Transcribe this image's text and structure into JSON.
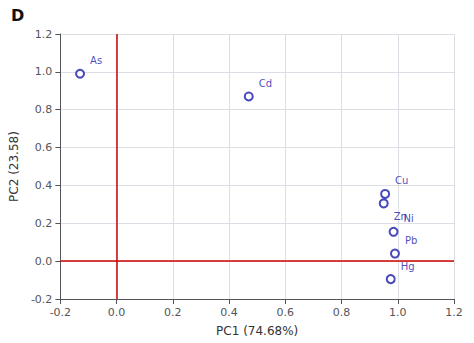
{
  "chart_data": {
    "type": "scatter",
    "title": "D",
    "x_label": "PC1 (74.68%)",
    "y_label": "PC2 (23.58)",
    "labels": [
      "As",
      "Cd",
      "Cu",
      "Zn",
      "Ni",
      "Pb",
      "Hg"
    ],
    "x": [
      -0.13,
      0.47,
      0.955,
      0.95,
      0.985,
      0.99,
      0.975
    ],
    "values": [
      0.99,
      0.87,
      0.355,
      0.305,
      0.155,
      0.04,
      -0.095
    ],
    "color": "#1a1aaa",
    "marker": "circle",
    "xlim": [
      -0.2,
      1.2
    ],
    "ylim": [
      -0.2,
      1.2
    ],
    "xticks": [
      -0.2,
      {
        "value": 0,
        "label": "0.0"
      },
      0.2,
      0.4,
      0.6,
      0.8,
      {
        "value": 1,
        "label": "1.0"
      },
      1.2
    ],
    "yticks": [
      -0.2,
      {
        "value": 0,
        "label": "0.0"
      },
      0.2,
      0.4,
      0.6,
      0.8,
      {
        "value": 1,
        "label": "1.0"
      },
      1.2
    ],
    "reference_lines": [
      {
        "axis": "y",
        "value": 0,
        "color": "#cc0000"
      },
      {
        "axis": "x",
        "value": 0,
        "color": "#cc0000"
      }
    ],
    "grid": true
  }
}
